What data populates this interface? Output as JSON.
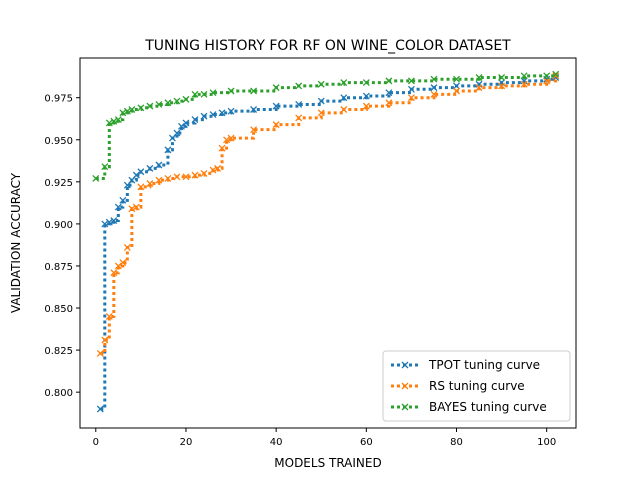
{
  "chart_data": {
    "type": "line",
    "title": "TUNING HISTORY FOR RF ON WINE_COLOR DATASET",
    "xlabel": "MODELS TRAINED",
    "ylabel": "VALIDATION ACCURACY",
    "xlim": [
      -3.5,
      106.5
    ],
    "ylim": [
      0.7787,
      0.9986
    ],
    "xticks": [
      0,
      20,
      40,
      60,
      80,
      100
    ],
    "yticks": [
      0.8,
      0.825,
      0.85,
      0.875,
      0.9,
      0.925,
      0.95,
      0.975
    ],
    "ytick_labels": [
      "0.800",
      "0.825",
      "0.850",
      "0.875",
      "0.900",
      "0.925",
      "0.950",
      "0.975"
    ],
    "grid": false,
    "legend_position": "lower-right",
    "series": [
      {
        "name": "TPOT tuning curve",
        "color": "#1f77b4",
        "linestyle": "dotted",
        "marker": "x",
        "x": [
          1,
          2,
          3,
          4,
          5,
          6,
          7,
          8,
          9,
          10,
          12,
          14,
          16,
          17,
          18,
          19,
          20,
          22,
          24,
          26,
          28,
          30,
          35,
          40,
          45,
          50,
          55,
          60,
          65,
          70,
          75,
          80,
          85,
          90,
          95,
          100,
          102
        ],
        "values": [
          0.79,
          0.9,
          0.901,
          0.902,
          0.91,
          0.914,
          0.923,
          0.926,
          0.929,
          0.931,
          0.933,
          0.935,
          0.944,
          0.951,
          0.954,
          0.958,
          0.96,
          0.962,
          0.964,
          0.965,
          0.966,
          0.967,
          0.968,
          0.97,
          0.971,
          0.973,
          0.975,
          0.976,
          0.978,
          0.98,
          0.981,
          0.982,
          0.983,
          0.984,
          0.985,
          0.986,
          0.987
        ]
      },
      {
        "name": "RS tuning curve",
        "color": "#ff7f0e",
        "linestyle": "dotted",
        "marker": "x",
        "x": [
          1,
          2,
          3,
          4,
          5,
          6,
          7,
          8,
          9,
          10,
          12,
          14,
          16,
          18,
          20,
          22,
          24,
          26,
          27,
          28,
          29,
          30,
          35,
          40,
          45,
          50,
          55,
          60,
          65,
          70,
          75,
          80,
          85,
          90,
          95,
          100,
          102
        ],
        "values": [
          0.823,
          0.831,
          0.845,
          0.871,
          0.875,
          0.877,
          0.886,
          0.909,
          0.91,
          0.922,
          0.924,
          0.926,
          0.927,
          0.928,
          0.928,
          0.929,
          0.93,
          0.932,
          0.933,
          0.945,
          0.95,
          0.951,
          0.956,
          0.959,
          0.963,
          0.966,
          0.968,
          0.97,
          0.972,
          0.975,
          0.977,
          0.979,
          0.981,
          0.982,
          0.983,
          0.985,
          0.988
        ]
      },
      {
        "name": "BAYES tuning curve",
        "color": "#2ca02c",
        "linestyle": "dotted",
        "marker": "x",
        "x": [
          0,
          2,
          3,
          4,
          5,
          6,
          7,
          8,
          10,
          12,
          14,
          16,
          18,
          20,
          22,
          24,
          26,
          30,
          35,
          40,
          45,
          50,
          55,
          60,
          65,
          70,
          75,
          80,
          85,
          90,
          95,
          100,
          102
        ],
        "values": [
          0.927,
          0.934,
          0.96,
          0.961,
          0.962,
          0.966,
          0.967,
          0.968,
          0.969,
          0.97,
          0.971,
          0.972,
          0.973,
          0.974,
          0.977,
          0.977,
          0.978,
          0.979,
          0.979,
          0.981,
          0.982,
          0.983,
          0.984,
          0.984,
          0.985,
          0.985,
          0.986,
          0.986,
          0.987,
          0.987,
          0.988,
          0.988,
          0.989
        ]
      }
    ]
  }
}
